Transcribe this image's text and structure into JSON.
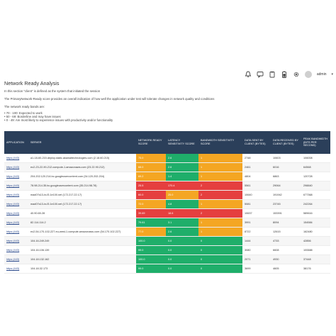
{
  "header": {
    "user": "admin",
    "icons": [
      "bell-icon",
      "chat-icon",
      "clipboard-icon",
      "battery-icon",
      "gear-icon"
    ]
  },
  "page": {
    "title": "Network Ready Analysis",
    "desc1": "In this section \"client\" is defined as the system that initiated the session",
    "desc2": "The PrimaryNetwork-Ready score provides an overall indication of how well the application under test will tolerate changes in network quality and conditions",
    "bands_intro": "The network ready bands are:",
    "bands": [
      "70 - 100: Expected to work",
      "50 - 69: Borderline and may have issues",
      "0 - 49: Are most likely to experience issues with productivity and/or functionality"
    ]
  },
  "table": {
    "headers": [
      "APPLICATION",
      "SERVER",
      "NETWORK READY SCORE",
      "LATENCY SENSITIVITY SCORE",
      "BANDWIDTH SENSITIVITY SCORE",
      "DATA SENT BY CLIENT (BYTES)",
      "DATA RECEIVED BY CLIENT (BYTES)",
      "PEAK BANDWIDTH (BITS PER SECOND)"
    ],
    "rows": [
      {
        "app": "https (443)",
        "server": "a1-18-60-215.deploy.static.akamaitechnologies.com (2.18.60.215)",
        "nrs": "75.0",
        "nrs_c": "o",
        "lat": "2.6",
        "lat_c": "g",
        "bw": "1",
        "bw_c": "o",
        "sent": "2748",
        "recv": "10603",
        "peak": "106008"
      },
      {
        "app": "https (443)",
        "server": "ec2-23-22-90-212.compute-1.amazonaws.com (23.22.90.212)",
        "nrs": "68.0",
        "nrs_c": "o",
        "lat": "2.6",
        "lat_c": "g",
        "bw": "1",
        "bw_c": "o",
        "sent": "2461",
        "recv": "6016",
        "peak": "64568"
      },
      {
        "app": "https (443)",
        "server": "204.202.120.214.bc.googleusercontent.com (34.120.202.204)",
        "nrs": "69.2",
        "nrs_c": "o",
        "lat": "1.4",
        "lat_c": "g",
        "bw": "1",
        "bw_c": "o",
        "sent": "4804",
        "recv": "6863",
        "peak": "120728"
      },
      {
        "app": "https (443)",
        "server": "78.98.214.35.bc.googleusercontent.com (35.214.98.78)",
        "nrs": "25.5",
        "nrs_c": "r",
        "lat": "170.4",
        "lat_c": "r",
        "bw": "2",
        "bw_c": "r",
        "sent": "5561",
        "recv": "29064",
        "peak": "298840"
      },
      {
        "app": "https (443)",
        "server": "mad07s13-in-f3.1e100.net (172.217.22.17)",
        "nrs": "60.0",
        "nrs_c": "r",
        "lat": "25.0",
        "lat_c": "o",
        "bw": "2",
        "bw_c": "r",
        "sent": "10640",
        "recv": "191942",
        "peak": "677368"
      },
      {
        "app": "https (443)",
        "server": "mad07s13-in-f3.1e100.net (172.217.22.17)",
        "nrs": "72.0",
        "nrs_c": "o",
        "lat": "4.8",
        "lat_c": "g",
        "bw": "1",
        "bw_c": "o",
        "sent": "5081",
        "recv": "23745",
        "peak": "242264"
      },
      {
        "app": "https (443)",
        "server": "40.90.65.28",
        "nrs": "39.69",
        "nrs_c": "r",
        "lat": "18.6",
        "lat_c": "r",
        "bw": "2",
        "bw_c": "r",
        "sent": "10637",
        "recv": "153391",
        "peak": "589616"
      },
      {
        "app": "https (443)",
        "server": "82.114.114.2",
        "nrs": "79.61",
        "nrs_c": "g",
        "lat": "3.1",
        "lat_c": "g",
        "bw": "1",
        "bw_c": "o",
        "sent": "3991",
        "recv": "8094",
        "peak": "154584"
      },
      {
        "app": "https (443)",
        "server": "ec2-54-170-102-227.eu-west-1.compute.amazonaws.com (54.170.102.227)",
        "nrs": "77.0",
        "nrs_c": "o",
        "lat": "2.6",
        "lat_c": "g",
        "bw": "1",
        "bw_c": "o",
        "sent": "8722",
        "recv": "12615",
        "peak": "162480"
      },
      {
        "app": "https (443)",
        "server": "104.16.249.249",
        "nrs": "100.0",
        "nrs_c": "g",
        "lat": "0.0",
        "lat_c": "g",
        "bw": "0",
        "bw_c": "g",
        "sent": "1444",
        "recv": "4733",
        "peak": "42856"
      },
      {
        "app": "https (443)",
        "server": "104.16.106.139",
        "nrs": "99.0",
        "nrs_c": "g",
        "lat": "0.0",
        "lat_c": "g",
        "bw": "0",
        "bw_c": "g",
        "sent": "3080",
        "recv": "6608",
        "peak": "100688"
      },
      {
        "app": "https (443)",
        "server": "104.18.132.162",
        "nrs": "100.0",
        "nrs_c": "g",
        "lat": "0.0",
        "lat_c": "g",
        "bw": "0",
        "bw_c": "g",
        "sent": "2071",
        "recv": "4930",
        "peak": "37448"
      },
      {
        "app": "https (443)",
        "server": "104.18.32.173",
        "nrs": "99.0",
        "nrs_c": "g",
        "lat": "0.0",
        "lat_c": "g",
        "bw": "0",
        "bw_c": "g",
        "sent": "3699",
        "recv": "4605",
        "peak": "38176"
      }
    ]
  },
  "colors": {
    "green": "#1fae6a",
    "orange": "#f4a623",
    "red": "#e53f3f",
    "header_bg": "#2b3f5a"
  }
}
